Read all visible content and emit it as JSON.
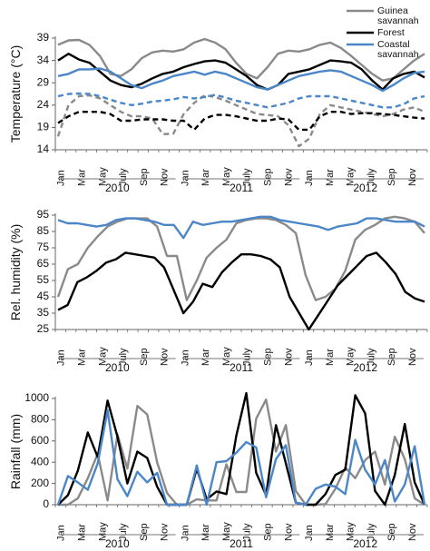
{
  "colors": {
    "guinea": "#8a8a8a",
    "forest": "#000000",
    "coastal": "#4a86c8"
  },
  "chart_data": [
    {
      "type": "line",
      "ylabel": "Temperature (°C)",
      "ylim": [
        14,
        39
      ],
      "yticks": [
        14,
        19,
        24,
        29,
        34,
        39
      ],
      "grid": false,
      "legend_position": "top-right",
      "legend": [
        {
          "series": "guinea",
          "lines": [
            "Guinea",
            "savannah"
          ]
        },
        {
          "series": "forest",
          "lines": [
            "Forest"
          ]
        },
        {
          "series": "coastal",
          "lines": [
            "Coastal",
            "savannah"
          ]
        }
      ],
      "x_tick_labels": [
        "Jan",
        "Mar",
        "May",
        "July",
        "Sep",
        "Nov",
        "Jan",
        "Mar",
        "May",
        "July",
        "Sep",
        "Nov",
        "Jan",
        "Mar",
        "May",
        "July",
        "Sep",
        "Nov"
      ],
      "years": [
        "2010",
        "2011",
        "2012"
      ],
      "series": [
        {
          "key": "guinea",
          "style": "solid",
          "values": [
            37.5,
            38.5,
            38.6,
            37.5,
            35,
            31,
            30.5,
            32,
            34.5,
            35.8,
            36.2,
            36,
            36.5,
            38,
            38.8,
            38,
            36.5,
            33.5,
            31,
            30,
            32.5,
            35.5,
            36.2,
            36,
            36.5,
            37.5,
            38,
            36.8,
            35,
            33,
            31,
            29.5,
            30,
            32,
            34,
            35.5
          ]
        },
        {
          "key": "guinea",
          "style": "dashed",
          "values": [
            17,
            24,
            26,
            26.2,
            25.5,
            24,
            22.5,
            21.5,
            21.5,
            21,
            17.5,
            17.6,
            22,
            24.5,
            26.2,
            25.8,
            25,
            24,
            23,
            22,
            21.8,
            21.5,
            19.5,
            14.8,
            16.5,
            22,
            24,
            23.5,
            23,
            22.5,
            22,
            21.5,
            22,
            23,
            23.5,
            22.5
          ]
        },
        {
          "key": "forest",
          "style": "solid",
          "values": [
            34,
            35.5,
            34.2,
            33.5,
            31.5,
            29.5,
            28.5,
            28,
            28.8,
            30,
            31,
            31.5,
            32.5,
            33.2,
            33.8,
            34,
            33.5,
            32,
            30.5,
            28.5,
            27.5,
            28.5,
            31,
            31.5,
            32,
            33,
            34,
            33.8,
            33.5,
            32,
            29.5,
            27.5,
            30,
            31,
            31.5,
            30.2
          ]
        },
        {
          "key": "forest",
          "style": "dashed",
          "values": [
            20,
            21.5,
            22.5,
            22.5,
            22.5,
            22,
            20.5,
            20.5,
            20.8,
            20.8,
            20.8,
            20.5,
            20.5,
            18.5,
            21,
            21.8,
            21.8,
            21.5,
            21,
            20.5,
            20.5,
            21,
            20.8,
            18.5,
            18.5,
            21.5,
            22.5,
            22.5,
            22,
            22.2,
            22.2,
            22,
            21.8,
            21.5,
            21.2,
            21
          ]
        },
        {
          "key": "coastal",
          "style": "solid",
          "values": [
            30.5,
            31,
            32,
            32,
            32.2,
            31.5,
            30,
            28.5,
            27.8,
            28.8,
            29.5,
            30.5,
            31,
            31.5,
            30.8,
            31.5,
            31,
            30,
            29,
            28,
            27.5,
            28.5,
            29.5,
            30.5,
            31,
            31.5,
            31.8,
            31.5,
            30.5,
            29.5,
            28.5,
            27.2,
            28.5,
            30,
            31.2,
            31.5
          ]
        },
        {
          "key": "coastal",
          "style": "dashed",
          "values": [
            26,
            26.5,
            26.6,
            26.5,
            26,
            25.2,
            24.5,
            24,
            24.3,
            24.8,
            25,
            25.3,
            25.8,
            25.5,
            25.8,
            26.3,
            25.7,
            25,
            24.5,
            24,
            23.5,
            24,
            24.5,
            25.5,
            26,
            26,
            26,
            25.5,
            25,
            24.5,
            24,
            23.5,
            23.5,
            24.2,
            25.5,
            26
          ]
        }
      ]
    },
    {
      "type": "line",
      "ylabel": "Rel. humidity (%)",
      "ylim": [
        25,
        95
      ],
      "yticks": [
        25,
        35,
        45,
        55,
        65,
        75,
        85,
        95
      ],
      "grid": false,
      "x_tick_labels": [
        "Jan",
        "Mar",
        "May",
        "July",
        "Sep",
        "Nov",
        "Jan",
        "Mar",
        "May",
        "July",
        "Sep",
        "Nov",
        "Jan",
        "Mar",
        "May",
        "July",
        "Sep",
        "Nov"
      ],
      "years": [
        "2010",
        "2011",
        "2012"
      ],
      "series": [
        {
          "key": "guinea",
          "values": [
            45,
            62,
            65,
            75,
            82,
            88,
            91,
            93,
            93,
            93,
            88,
            70,
            70,
            43,
            55,
            69,
            75,
            80,
            90,
            92,
            93,
            93,
            92,
            89,
            84,
            58,
            43,
            45,
            50,
            61,
            80,
            86,
            89,
            93,
            94,
            93,
            91,
            84
          ]
        },
        {
          "key": "forest",
          "values": [
            37,
            40,
            54,
            57,
            61,
            66,
            68,
            72,
            71,
            70,
            69,
            63,
            49,
            35,
            42,
            53,
            51,
            60,
            66,
            71,
            71,
            70,
            68,
            63,
            45,
            35,
            25,
            34,
            43,
            52,
            58,
            64,
            70,
            72,
            66,
            59,
            48,
            44,
            42
          ]
        },
        {
          "key": "coastal",
          "values": [
            92,
            90,
            90,
            89,
            88,
            89,
            92,
            93,
            93,
            92,
            91,
            89,
            89,
            81,
            91,
            89,
            90,
            91,
            91,
            92,
            93,
            94,
            94,
            92,
            91,
            90,
            89,
            88,
            86,
            88,
            89,
            90,
            93,
            93,
            92,
            91,
            91,
            91,
            88
          ]
        }
      ]
    },
    {
      "type": "line",
      "ylabel": "Rainfall (mm)",
      "ylim": [
        0,
        1000
      ],
      "yticks": [
        0,
        200,
        400,
        600,
        800,
        1000
      ],
      "grid": false,
      "x_tick_labels": [
        "Jan",
        "Mar",
        "May",
        "July",
        "Sep",
        "Nov",
        "Jan",
        "Mar",
        "May",
        "July",
        "Sep",
        "Nov",
        "Jan",
        "Mar",
        "May",
        "July",
        "Sep",
        "Nov"
      ],
      "years": [
        "2010",
        "2011",
        "2012"
      ],
      "series": [
        {
          "key": "guinea",
          "values": [
            0,
            0,
            60,
            250,
            480,
            40,
            660,
            340,
            930,
            850,
            400,
            110,
            0,
            0,
            50,
            40,
            40,
            380,
            120,
            120,
            810,
            990,
            500,
            750,
            130,
            0,
            0,
            5,
            150,
            350,
            250,
            420,
            500,
            190,
            640,
            430,
            60,
            0
          ]
        },
        {
          "key": "forest",
          "values": [
            0,
            90,
            320,
            680,
            450,
            980,
            640,
            200,
            500,
            440,
            170,
            0,
            0,
            0,
            340,
            50,
            125,
            100,
            650,
            1050,
            300,
            90,
            750,
            390,
            20,
            0,
            0,
            100,
            280,
            330,
            1030,
            860,
            130,
            0,
            280,
            760,
            210,
            0
          ]
        },
        {
          "key": "coastal",
          "values": [
            0,
            270,
            210,
            140,
            390,
            890,
            240,
            80,
            310,
            210,
            300,
            0,
            0,
            0,
            370,
            0,
            400,
            410,
            490,
            590,
            540,
            70,
            430,
            560,
            20,
            0,
            150,
            190,
            170,
            100,
            610,
            330,
            190,
            420,
            30,
            190,
            550,
            0
          ]
        }
      ]
    }
  ]
}
